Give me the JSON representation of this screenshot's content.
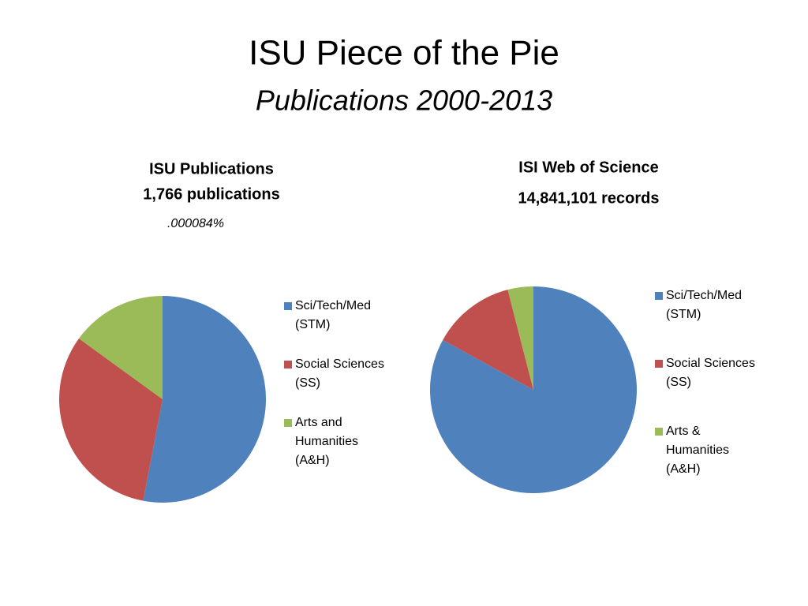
{
  "title": "ISU Piece of the Pie",
  "subtitle": "Publications 2000-2013",
  "chart_data": [
    {
      "type": "pie",
      "title": "ISU Publications",
      "subtitle": "1,766 publications",
      "note": ".000084%",
      "categories": [
        "Sci/Tech/Med (STM)",
        "Social Sciences (SS)",
        "Arts and Humanities (A&H)"
      ],
      "values": [
        53,
        32,
        15
      ],
      "colors": [
        "#4f81bd",
        "#c0504d",
        "#9bbb59"
      ]
    },
    {
      "type": "pie",
      "title": "ISI Web of Science",
      "subtitle": "14,841,101 records",
      "categories": [
        "Sci/Tech/Med (STM)",
        "Social Sciences (SS)",
        "Arts & Humanities (A&H)"
      ],
      "values": [
        83,
        13,
        4
      ],
      "colors": [
        "#4f81bd",
        "#c0504d",
        "#9bbb59"
      ]
    }
  ]
}
